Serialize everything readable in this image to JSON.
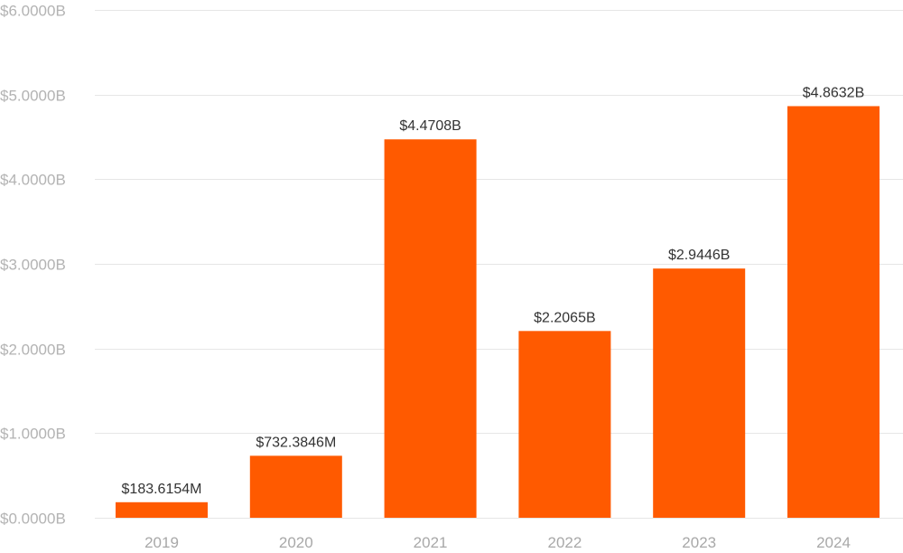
{
  "colors": {
    "bar": "#ff5a00",
    "grid": "#e6e6e6"
  },
  "chart_data": {
    "type": "bar",
    "title": "",
    "xlabel": "",
    "ylabel": "",
    "ylim": [
      0,
      6000000000
    ],
    "grid": true,
    "legend": "none",
    "categories": [
      "2019",
      "2020",
      "2021",
      "2022",
      "2023",
      "2024"
    ],
    "values": [
      183615400,
      732384600,
      4470800000,
      2206500000,
      2944600000,
      4863200000
    ],
    "data_labels": [
      "$183.6154M",
      "$732.3846M",
      "$4.4708B",
      "$2.2065B",
      "$2.9446B",
      "$4.8632B"
    ],
    "y_ticks": [
      {
        "value": 0,
        "label": "$0.0000B"
      },
      {
        "value": 1000000000,
        "label": "$1.0000B"
      },
      {
        "value": 2000000000,
        "label": "$2.0000B"
      },
      {
        "value": 3000000000,
        "label": "$3.0000B"
      },
      {
        "value": 4000000000,
        "label": "$4.0000B"
      },
      {
        "value": 5000000000,
        "label": "$5.0000B"
      },
      {
        "value": 6000000000,
        "label": "$6.0000B"
      }
    ]
  }
}
